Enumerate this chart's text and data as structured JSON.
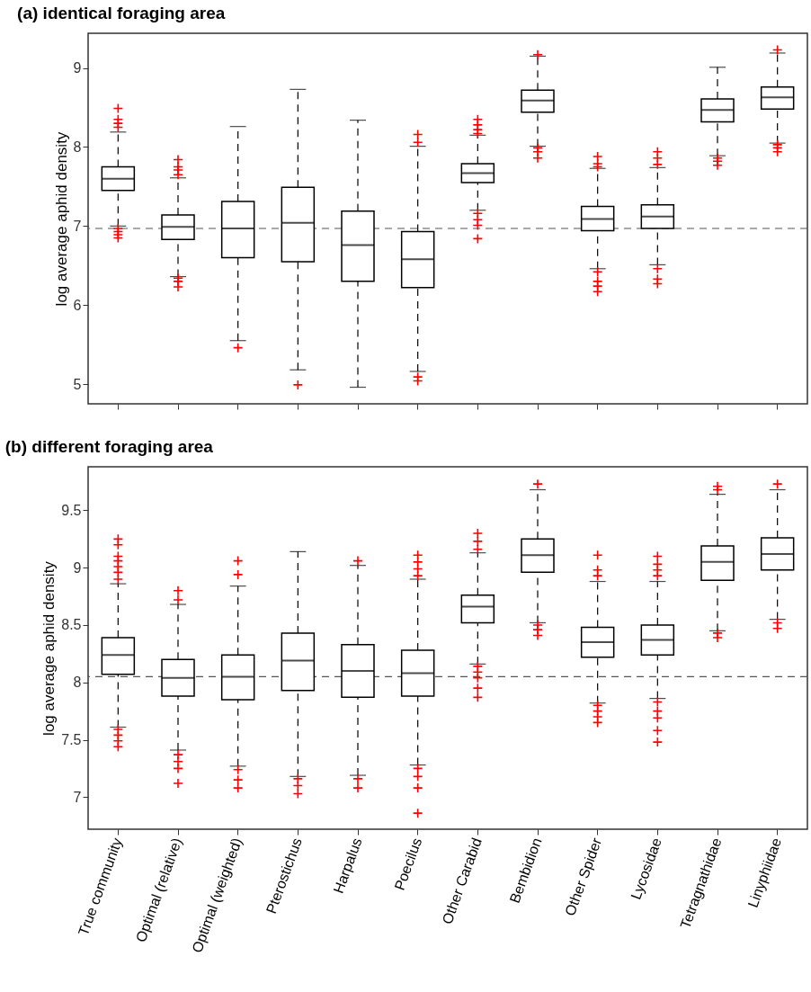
{
  "chart_data": [
    {
      "type": "box",
      "title": "(a) identical foraging area",
      "ylabel": "log average aphid density",
      "categories": [
        "True community",
        "Optimal (relative)",
        "Optimal (weighted)",
        "Pterostichus",
        "Harpalus",
        "Poecilus",
        "Other Carabid",
        "Bembidion",
        "Other Spider",
        "Lycosidae",
        "Tetragnathidae",
        "Linyphiidae"
      ],
      "tick_labels": "y",
      "ylim": [
        4.75,
        9.44
      ],
      "yticks": [
        5,
        6,
        7,
        8,
        9
      ],
      "grid": false,
      "marker": "cross",
      "line_style": "dashed",
      "colors": [
        "#000000",
        "#ff0000"
      ],
      "ref_lines": [
        {
          "axis": "y",
          "value": 6.97,
          "color": "#555555",
          "line_style": "dashed"
        }
      ],
      "series": [
        {
          "color": "#000000",
          "boxes": [
            {
              "low": 7.0,
              "q1": 7.45,
              "median": 7.6,
              "q3": 7.75,
              "high": 8.19,
              "outliers": [
                8.49,
                8.35,
                8.3,
                8.25,
                6.97,
                6.93,
                6.89,
                6.85
              ]
            },
            {
              "low": 6.36,
              "q1": 6.83,
              "median": 6.99,
              "q3": 7.14,
              "high": 7.61,
              "outliers": [
                7.84,
                7.75,
                7.71,
                7.65,
                6.34,
                6.3,
                6.23
              ]
            },
            {
              "low": 5.55,
              "q1": 6.6,
              "median": 6.97,
              "q3": 7.31,
              "high": 8.26,
              "outliers": [
                5.46
              ]
            },
            {
              "low": 5.18,
              "q1": 6.55,
              "median": 7.04,
              "q3": 7.49,
              "high": 8.73,
              "outliers": [
                4.99
              ]
            },
            {
              "low": 4.96,
              "q1": 6.3,
              "median": 6.76,
              "q3": 7.19,
              "high": 8.34
            },
            {
              "low": 5.16,
              "q1": 6.22,
              "median": 6.58,
              "q3": 6.93,
              "high": 8.01,
              "outliers": [
                8.16,
                8.06,
                5.09,
                5.04
              ]
            },
            {
              "low": 7.2,
              "q1": 7.55,
              "median": 7.67,
              "q3": 7.79,
              "high": 8.15,
              "outliers": [
                8.35,
                8.28,
                8.22,
                8.17,
                7.16,
                7.08,
                7.01,
                6.84
              ]
            },
            {
              "low": 8.01,
              "q1": 8.44,
              "median": 8.59,
              "q3": 8.72,
              "high": 9.15,
              "outliers": [
                9.17,
                7.99,
                7.94,
                7.86
              ]
            },
            {
              "low": 6.46,
              "q1": 6.94,
              "median": 7.09,
              "q3": 7.25,
              "high": 7.73,
              "outliers": [
                7.88,
                7.79,
                7.75,
                6.42,
                6.3,
                6.24,
                6.17
              ]
            },
            {
              "low": 6.51,
              "q1": 6.97,
              "median": 7.12,
              "q3": 7.27,
              "high": 7.74,
              "outliers": [
                7.94,
                7.86,
                7.78,
                6.46,
                6.33,
                6.27
              ]
            },
            {
              "low": 7.89,
              "q1": 8.32,
              "median": 8.47,
              "q3": 8.61,
              "high": 9.01,
              "outliers": [
                7.86,
                7.82,
                7.77
              ]
            },
            {
              "low": 8.05,
              "q1": 8.48,
              "median": 8.63,
              "q3": 8.76,
              "high": 9.19,
              "outliers": [
                9.23,
                8.03,
                7.99,
                7.94
              ]
            }
          ]
        }
      ]
    },
    {
      "type": "box",
      "title": "(b) different foraging area",
      "ylabel": "log average aphid density",
      "categories": [
        "True community",
        "Optimal (relative)",
        "Optimal (weighted)",
        "Pterostichus",
        "Harpalus",
        "Poecilus",
        "Other Carabid",
        "Bembidion",
        "Other Spider",
        "Lycosidae",
        "Tetragnathidae",
        "Linyphiidae"
      ],
      "ylim": [
        6.72,
        9.88
      ],
      "yticks": [
        7,
        7.5,
        8,
        8.5,
        9,
        9.5
      ],
      "grid": false,
      "marker": "cross",
      "line_style": "dashed",
      "colors": [
        "#000000",
        "#ff0000"
      ],
      "ref_lines": [
        {
          "axis": "y",
          "value": 8.05,
          "color": "#555555",
          "line_style": "dashed"
        }
      ],
      "series": [
        {
          "color": "#000000",
          "boxes": [
            {
              "low": 7.61,
              "q1": 8.07,
              "median": 8.24,
              "q3": 8.39,
              "high": 8.86,
              "outliers": [
                9.25,
                9.2,
                9.1,
                9.06,
                9.01,
                8.96,
                8.9,
                7.59,
                7.54,
                7.49,
                7.44
              ]
            },
            {
              "low": 7.41,
              "q1": 7.88,
              "median": 8.04,
              "q3": 8.2,
              "high": 8.68,
              "outliers": [
                8.8,
                8.72,
                7.37,
                7.31,
                7.25,
                7.12
              ]
            },
            {
              "low": 7.27,
              "q1": 7.85,
              "median": 8.05,
              "q3": 8.24,
              "high": 8.84,
              "outliers": [
                9.06,
                8.94,
                7.24,
                7.15,
                7.08
              ]
            },
            {
              "low": 7.18,
              "q1": 7.93,
              "median": 8.19,
              "q3": 8.43,
              "high": 9.14,
              "outliers": [
                7.16,
                7.1,
                7.03
              ]
            },
            {
              "low": 7.19,
              "q1": 7.87,
              "median": 8.1,
              "q3": 8.33,
              "high": 9.02,
              "outliers": [
                9.06,
                7.16,
                7.08
              ]
            },
            {
              "low": 7.28,
              "q1": 7.88,
              "median": 8.08,
              "q3": 8.28,
              "high": 8.9,
              "outliers": [
                9.11,
                9.05,
                8.99,
                8.93,
                7.25,
                7.18,
                7.08,
                6.86
              ]
            },
            {
              "low": 8.16,
              "q1": 8.52,
              "median": 8.66,
              "q3": 8.76,
              "high": 9.13,
              "outliers": [
                9.3,
                9.23,
                9.16,
                8.14,
                8.09,
                8.04,
                7.95,
                7.87
              ]
            },
            {
              "low": 8.52,
              "q1": 8.96,
              "median": 9.11,
              "q3": 9.25,
              "high": 9.68,
              "outliers": [
                9.73,
                8.5,
                8.46,
                8.41
              ]
            },
            {
              "low": 7.82,
              "q1": 8.22,
              "median": 8.35,
              "q3": 8.48,
              "high": 8.88,
              "outliers": [
                9.11,
                8.98,
                8.93,
                7.8,
                7.75,
                7.7,
                7.65
              ]
            },
            {
              "low": 7.86,
              "q1": 8.24,
              "median": 8.37,
              "q3": 8.5,
              "high": 8.88,
              "outliers": [
                9.1,
                9.03,
                8.98,
                8.93,
                7.83,
                7.75,
                7.69,
                7.58,
                7.48
              ]
            },
            {
              "low": 8.45,
              "q1": 8.89,
              "median": 9.05,
              "q3": 9.19,
              "high": 9.64,
              "outliers": [
                9.71,
                9.68,
                8.43,
                8.39
              ]
            },
            {
              "low": 8.55,
              "q1": 8.98,
              "median": 9.12,
              "q3": 9.26,
              "high": 9.68,
              "outliers": [
                9.73,
                8.52,
                8.47
              ]
            }
          ]
        }
      ]
    }
  ]
}
